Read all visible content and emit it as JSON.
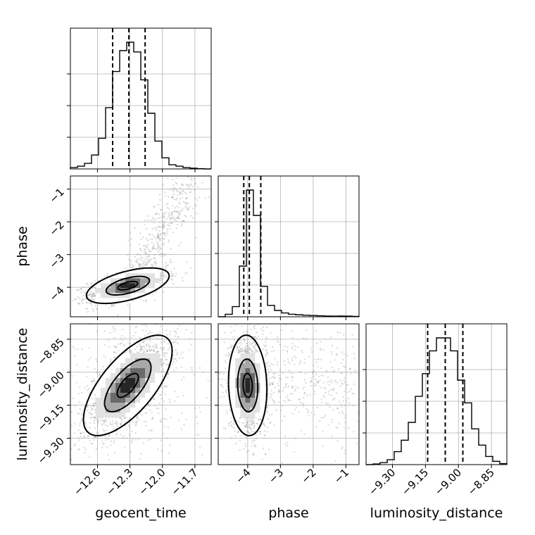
{
  "colors": {
    "line": "#000000",
    "grid": "#b0b0b0",
    "point": "#9a9a9a",
    "fill_levels": [
      "#ffffff",
      "#e2e2e2",
      "#a8a8a8",
      "#6a6a6a",
      "#262626"
    ]
  },
  "chart_data": {
    "type": "corner",
    "grid": true,
    "quantile_lines": "dashed",
    "parameters": [
      {
        "name": "geocent_time",
        "range": [
          -12.85,
          -11.55
        ],
        "ticks": [
          -12.6,
          -12.3,
          -12.0,
          -11.7
        ],
        "tick_labels": [
          "−12.6",
          "−12.3",
          "−12.0",
          "−11.7"
        ],
        "mean": -12.32,
        "sd": 0.14,
        "quantiles": [
          -12.46,
          -12.31,
          -12.16
        ],
        "histogram": [
          1,
          2,
          4,
          10,
          22,
          44,
          70,
          85,
          91,
          84,
          64,
          40,
          20,
          8,
          3,
          2,
          1,
          0.5,
          0.2,
          0
        ]
      },
      {
        "name": "phase",
        "range": [
          -4.9,
          -0.6
        ],
        "ticks": [
          -4,
          -3,
          -2,
          -1
        ],
        "tick_labels": [
          "−4",
          "−3",
          "−2",
          "−1"
        ],
        "quantiles": [
          -4.12,
          -3.95,
          -3.6
        ],
        "histogram": [
          0,
          2,
          8,
          40,
          100,
          80,
          24,
          9,
          5,
          3,
          2,
          1.6,
          1.2,
          1,
          0.8,
          0.6,
          0.5,
          0.6,
          0.5,
          0.3
        ]
      },
      {
        "name": "luminosity_distance",
        "range": [
          -9.42,
          -8.78
        ],
        "ticks": [
          -9.3,
          -9.15,
          -9.0,
          -8.85
        ],
        "tick_labels": [
          "−9.30",
          "−9.15",
          "−9.00",
          "−8.85"
        ],
        "mean": -9.06,
        "sd": 0.075,
        "quantiles": [
          -9.14,
          -9.06,
          -8.98
        ],
        "histogram": [
          0,
          0.4,
          1.2,
          3,
          8,
          15,
          26,
          42,
          56,
          70,
          78,
          78,
          70,
          52,
          38,
          22,
          12,
          5,
          2,
          0.6
        ]
      }
    ],
    "panels": [
      {
        "type": "hist",
        "param": 0
      },
      {
        "type": "hist",
        "param": 1
      },
      {
        "type": "hist",
        "param": 2
      },
      {
        "type": "scatter2d",
        "x": 0,
        "y": 1,
        "rho": 0.6
      },
      {
        "type": "scatter2d",
        "x": 0,
        "y": 2,
        "rho": 0.65
      },
      {
        "type": "scatter2d",
        "x": 1,
        "y": 2,
        "rho": -0.1
      }
    ]
  },
  "axis_labels": {
    "x": [
      "geocent_time",
      "phase",
      "luminosity_distance"
    ],
    "y": [
      "phase",
      "luminosity_distance"
    ]
  }
}
